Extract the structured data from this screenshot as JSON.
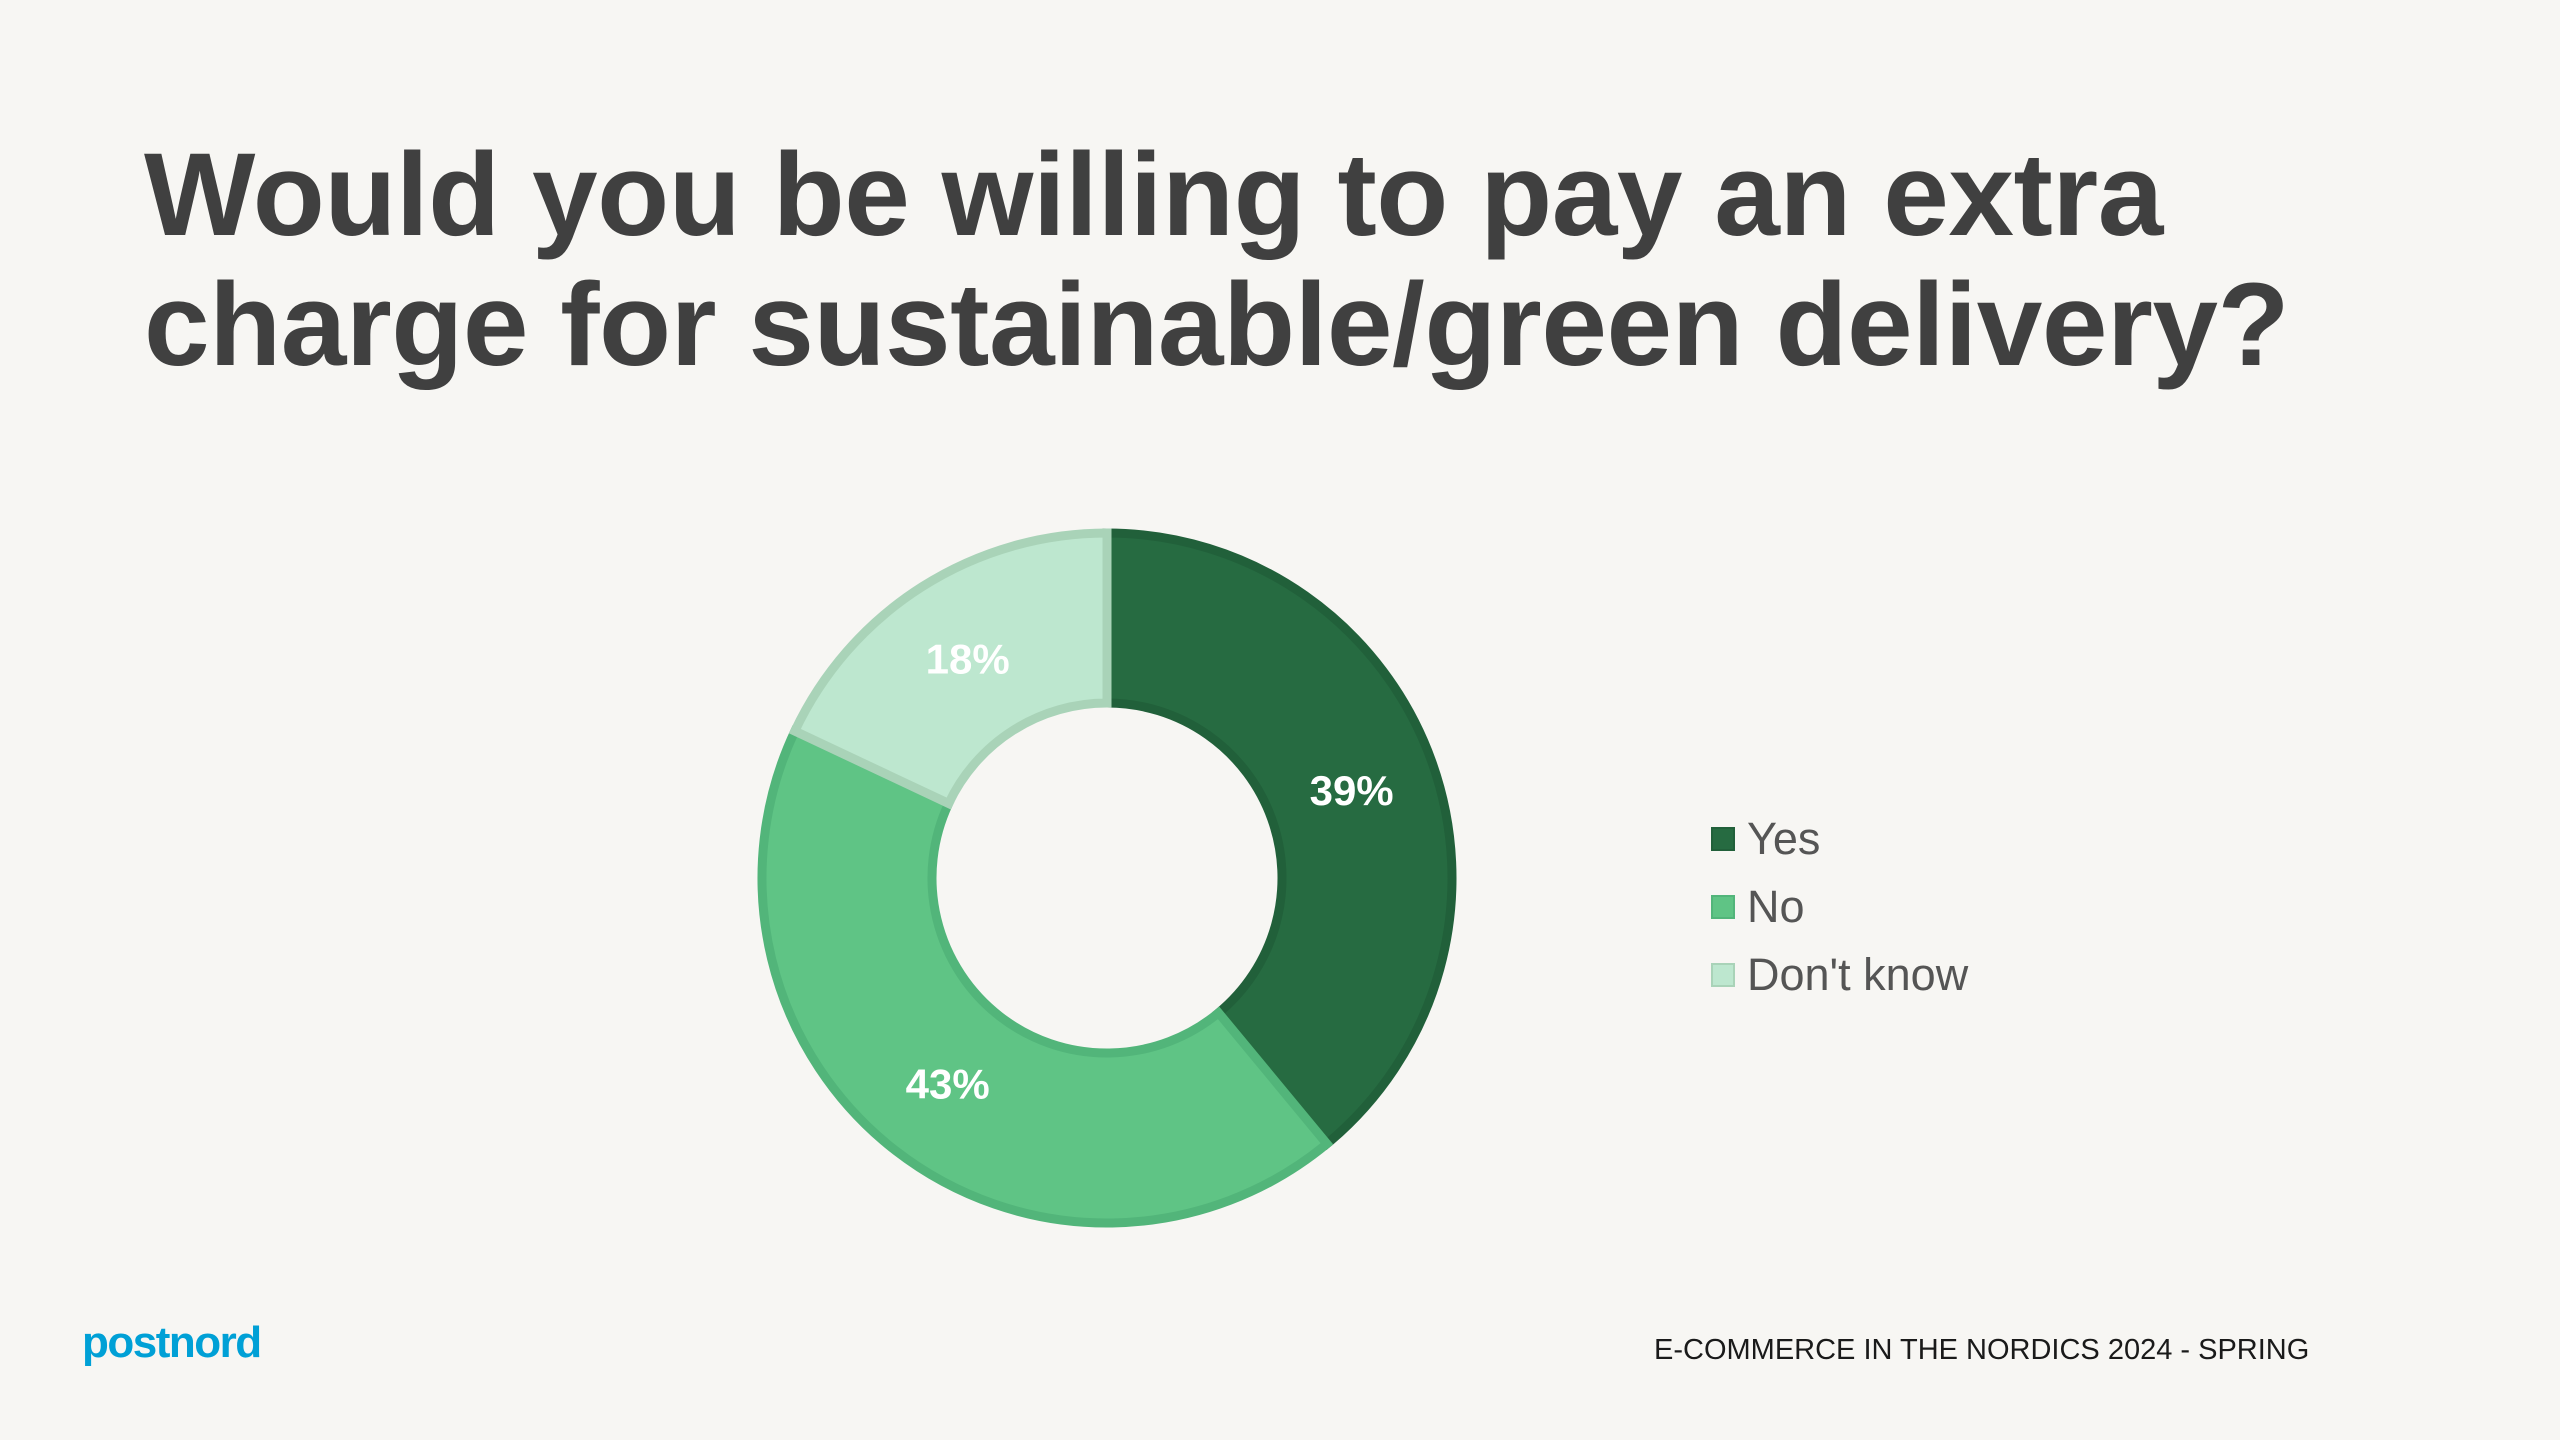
{
  "chart_data": {
    "type": "pie",
    "donut": true,
    "title": "Would you be willing to pay an extra charge for sustainable/green delivery?",
    "categories": [
      "Yes",
      "No",
      "Don't know"
    ],
    "values": [
      39,
      43,
      18
    ],
    "labels": [
      "39%",
      "43%",
      "18%"
    ],
    "colors": [
      "#266b41",
      "#5fc485",
      "#bde7cf"
    ],
    "border_colors": [
      "#21603a",
      "#52b57a",
      "#a9d3b8"
    ],
    "legend_position": "right",
    "start": "top, clockwise"
  },
  "footer": {
    "logo": "postnord",
    "text": "E-COMMERCE IN THE NORDICS 2024 - SPRING"
  },
  "colors": {
    "background": "#f7f6f3",
    "title": "#404040",
    "logo": "#00a0d6"
  }
}
